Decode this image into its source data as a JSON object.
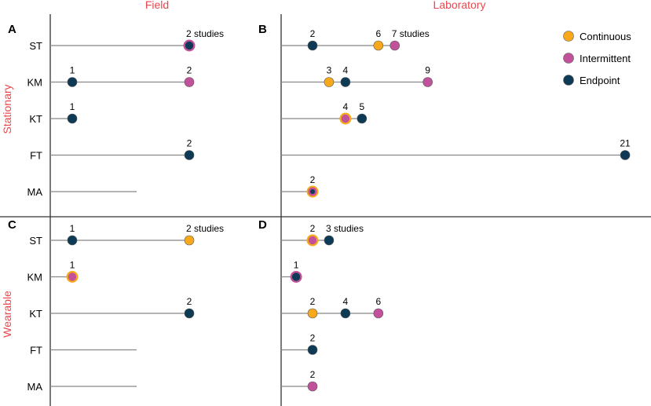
{
  "chart_data": {
    "type": "scatter",
    "subtype": "lollipop-dot-plot",
    "column_titles": [
      "Field",
      "Laboratory"
    ],
    "row_titles": [
      "Stationary",
      "Wearable"
    ],
    "categories": [
      "ST",
      "KM",
      "KT",
      "FT",
      "MA"
    ],
    "value_unit": "studies",
    "legend": {
      "placement": "top-right",
      "items": [
        {
          "key": "continuous",
          "label": "Continuous",
          "color": "#f7a81b"
        },
        {
          "key": "intermittent",
          "label": "Intermittent",
          "color": "#c0519a"
        },
        {
          "key": "endpoint",
          "label": "Endpoint",
          "color": "#0e3a56"
        }
      ]
    },
    "panels": [
      {
        "letter": "A",
        "column": "Field",
        "row": "Stationary",
        "xlim": [
          0,
          25
        ],
        "rows": [
          {
            "category": "ST",
            "points": [
              {
                "value": 2,
                "types": [
                  "intermittent",
                  "endpoint"
                ],
                "label": "2 studies"
              }
            ]
          },
          {
            "category": "KM",
            "points": [
              {
                "value": 1,
                "types": [
                  "endpoint"
                ],
                "label": "1"
              },
              {
                "value": 2,
                "types": [
                  "intermittent"
                ],
                "label": "2"
              }
            ]
          },
          {
            "category": "KT",
            "points": [
              {
                "value": 1,
                "types": [
                  "endpoint"
                ],
                "label": "1"
              }
            ]
          },
          {
            "category": "FT",
            "points": [
              {
                "value": 2,
                "types": [
                  "endpoint"
                ],
                "label": "2"
              }
            ]
          },
          {
            "category": "MA",
            "points": []
          }
        ]
      },
      {
        "letter": "B",
        "column": "Laboratory",
        "row": "Stationary",
        "xlim": [
          0,
          21
        ],
        "rows": [
          {
            "category": "ST",
            "points": [
              {
                "value": 2,
                "types": [
                  "endpoint"
                ],
                "label": "2"
              },
              {
                "value": 6,
                "types": [
                  "continuous"
                ],
                "label": "6"
              },
              {
                "value": 7,
                "types": [
                  "intermittent"
                ],
                "label": "7 studies"
              }
            ]
          },
          {
            "category": "KM",
            "points": [
              {
                "value": 3,
                "types": [
                  "continuous"
                ],
                "label": "3"
              },
              {
                "value": 4,
                "types": [
                  "endpoint"
                ],
                "label": "4"
              },
              {
                "value": 9,
                "types": [
                  "intermittent"
                ],
                "label": "9"
              }
            ]
          },
          {
            "category": "KT",
            "points": [
              {
                "value": 4,
                "types": [
                  "continuous",
                  "intermittent"
                ],
                "label": "4"
              },
              {
                "value": 5,
                "types": [
                  "endpoint"
                ],
                "label": "5"
              }
            ]
          },
          {
            "category": "FT",
            "points": [
              {
                "value": 21,
                "types": [
                  "endpoint"
                ],
                "label": "21"
              }
            ]
          },
          {
            "category": "MA",
            "points": [
              {
                "value": 2,
                "types": [
                  "continuous",
                  "intermittent",
                  "endpoint"
                ],
                "label": "2"
              }
            ]
          }
        ]
      },
      {
        "letter": "C",
        "column": "Field",
        "row": "Wearable",
        "xlim": [
          0,
          25
        ],
        "rows": [
          {
            "category": "ST",
            "points": [
              {
                "value": 1,
                "types": [
                  "endpoint"
                ],
                "label": "1"
              },
              {
                "value": 2,
                "types": [
                  "continuous"
                ],
                "label": "2 studies"
              }
            ]
          },
          {
            "category": "KM",
            "points": [
              {
                "value": 1,
                "types": [
                  "continuous",
                  "intermittent"
                ],
                "label": "1"
              }
            ]
          },
          {
            "category": "KT",
            "points": [
              {
                "value": 2,
                "types": [
                  "endpoint"
                ],
                "label": "2"
              }
            ]
          },
          {
            "category": "FT",
            "points": []
          },
          {
            "category": "MA",
            "points": []
          }
        ]
      },
      {
        "letter": "D",
        "column": "Laboratory",
        "row": "Wearable",
        "xlim": [
          0,
          21
        ],
        "rows": [
          {
            "category": "ST",
            "points": [
              {
                "value": 2,
                "types": [
                  "continuous",
                  "intermittent"
                ],
                "label": "2"
              },
              {
                "value": 3,
                "types": [
                  "endpoint"
                ],
                "label": "3 studies"
              }
            ]
          },
          {
            "category": "KM",
            "points": [
              {
                "value": 1,
                "types": [
                  "intermittent",
                  "endpoint"
                ],
                "label": "1"
              }
            ]
          },
          {
            "category": "KT",
            "points": [
              {
                "value": 2,
                "types": [
                  "continuous"
                ],
                "label": "2"
              },
              {
                "value": 4,
                "types": [
                  "endpoint"
                ],
                "label": "4"
              },
              {
                "value": 6,
                "types": [
                  "intermittent"
                ],
                "label": "6"
              }
            ]
          },
          {
            "category": "FT",
            "points": [
              {
                "value": 2,
                "types": [
                  "endpoint"
                ],
                "label": "2"
              }
            ]
          },
          {
            "category": "MA",
            "points": [
              {
                "value": 2,
                "types": [
                  "intermittent"
                ],
                "label": "2"
              }
            ]
          }
        ]
      }
    ]
  }
}
